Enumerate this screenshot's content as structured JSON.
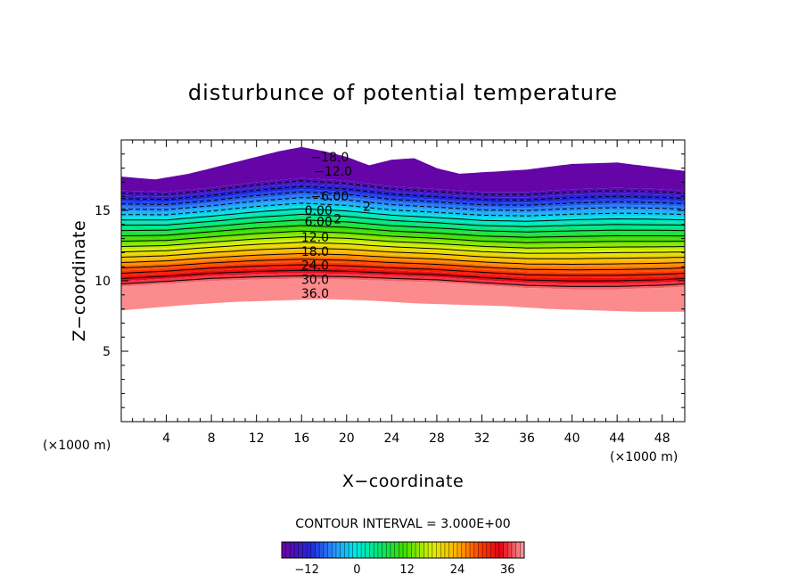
{
  "chart_data": {
    "type": "contour",
    "title": "disturbunce of potential temperature",
    "xlabel": "X−coordinate",
    "ylabel": "Z−coordinate",
    "x_unit": "(×1000 m)",
    "z_unit": "(×1000 m)",
    "xlim": [
      0,
      50
    ],
    "ylim": [
      0,
      20
    ],
    "x_ticks": [
      4,
      8,
      12,
      16,
      20,
      24,
      28,
      32,
      36,
      40,
      44,
      48
    ],
    "y_ticks": [
      5,
      10,
      15
    ],
    "contour_interval_label": "CONTOUR INTERVAL = 3.000E+00",
    "contour_interval": 3,
    "contour_labels": [
      {
        "text": "−18.0",
        "x": 18.5,
        "z": 18.8
      },
      {
        "text": "−12.0",
        "x": 18.8,
        "z": 17.8
      },
      {
        "text": "−6.00",
        "x": 18.5,
        "z": 16.0
      },
      {
        "text": "0.00",
        "x": 17.5,
        "z": 15.0
      },
      {
        "text": "6.00",
        "x": 17.5,
        "z": 14.2
      },
      {
        "text": "12.0",
        "x": 17.2,
        "z": 13.1
      },
      {
        "text": "18.0",
        "x": 17.2,
        "z": 12.1
      },
      {
        "text": "24.0",
        "x": 17.2,
        "z": 11.1
      },
      {
        "text": "30.0",
        "x": 17.2,
        "z": 10.1
      },
      {
        "text": "36.0",
        "x": 17.2,
        "z": 9.1
      }
    ],
    "extra_labels": [
      {
        "text": "2",
        "x": 21.8,
        "z": 15.3
      },
      {
        "text": "2",
        "x": 19.2,
        "z": 14.4
      }
    ],
    "colorbar": {
      "min": -18,
      "max": 40,
      "ticks": [
        -12,
        0,
        12,
        24,
        36
      ],
      "tick_labels": [
        "−12",
        "0",
        "12",
        "24",
        "36"
      ]
    },
    "field": {
      "level_range": [
        -18,
        39
      ],
      "upper_boundary_z": [
        [
          0,
          17.4
        ],
        [
          3,
          17.2
        ],
        [
          6,
          17.6
        ],
        [
          8,
          18.0
        ],
        [
          10,
          18.4
        ],
        [
          12,
          18.8
        ],
        [
          14,
          19.2
        ],
        [
          16,
          19.5
        ],
        [
          18,
          19.2
        ],
        [
          20,
          18.8
        ],
        [
          22,
          18.2
        ],
        [
          24,
          18.6
        ],
        [
          26,
          18.7
        ],
        [
          28,
          18.0
        ],
        [
          30,
          17.6
        ],
        [
          32,
          17.7
        ],
        [
          36,
          17.9
        ],
        [
          40,
          18.3
        ],
        [
          44,
          18.4
        ],
        [
          48,
          18.0
        ],
        [
          50,
          17.8
        ]
      ],
      "lower_boundary_z": [
        [
          0,
          7.9
        ],
        [
          3,
          8.1
        ],
        [
          6,
          8.3
        ],
        [
          10,
          8.5
        ],
        [
          14,
          8.6
        ],
        [
          18,
          8.7
        ],
        [
          22,
          8.6
        ],
        [
          26,
          8.4
        ],
        [
          30,
          8.3
        ],
        [
          34,
          8.2
        ],
        [
          38,
          8.0
        ],
        [
          42,
          7.9
        ],
        [
          46,
          7.8
        ],
        [
          50,
          7.8
        ]
      ],
      "layer_bottom_z": [
        [
          0,
          9.4
        ],
        [
          4,
          9.6
        ],
        [
          8,
          9.8
        ],
        [
          12,
          9.9
        ],
        [
          16,
          9.95
        ],
        [
          20,
          9.9
        ],
        [
          24,
          9.8
        ],
        [
          28,
          9.7
        ],
        [
          32,
          9.5
        ],
        [
          36,
          9.3
        ],
        [
          40,
          9.2
        ],
        [
          44,
          9.2
        ],
        [
          48,
          9.3
        ],
        [
          50,
          9.4
        ]
      ],
      "layer_top_z": [
        [
          0,
          16.6
        ],
        [
          4,
          16.5
        ],
        [
          8,
          16.8
        ],
        [
          12,
          17.2
        ],
        [
          16,
          17.5
        ],
        [
          20,
          17.3
        ],
        [
          24,
          16.9
        ],
        [
          28,
          16.7
        ],
        [
          32,
          16.5
        ],
        [
          36,
          16.5
        ],
        [
          40,
          16.7
        ],
        [
          44,
          16.8
        ],
        [
          48,
          16.7
        ],
        [
          50,
          16.6
        ]
      ]
    }
  }
}
